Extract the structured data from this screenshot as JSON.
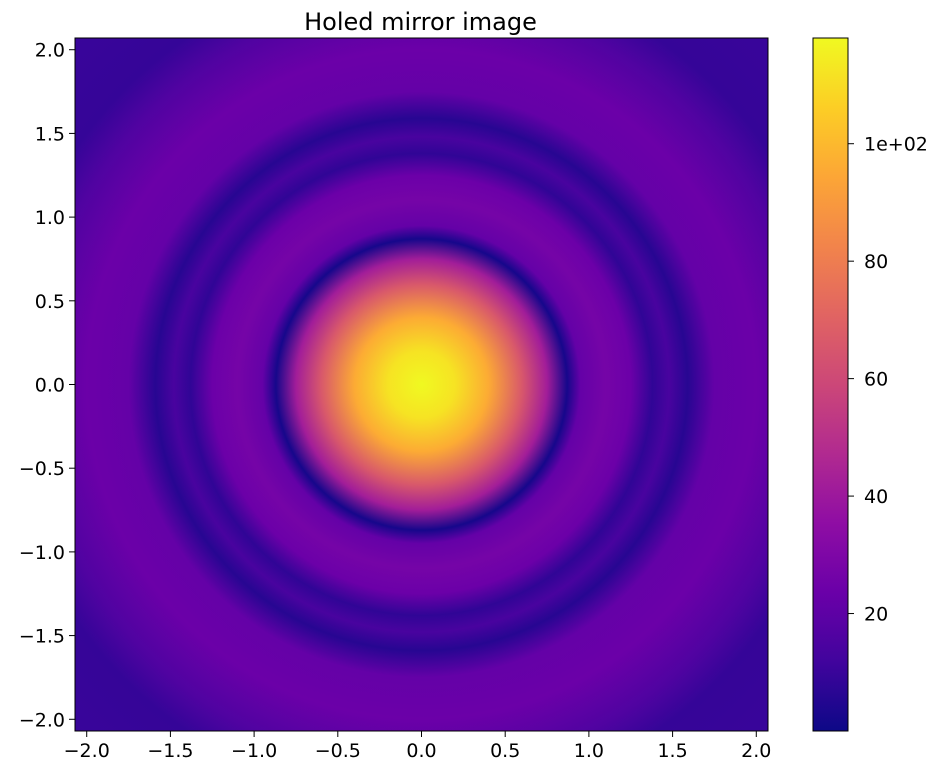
{
  "chart_data": {
    "type": "heatmap",
    "title": "Holed mirror image",
    "xlabel": "",
    "ylabel": "",
    "xlim": [
      -2.07,
      2.07
    ],
    "ylim": [
      -2.07,
      2.07
    ],
    "x_ticks": [
      -2.0,
      -1.5,
      -1.0,
      -0.5,
      0.0,
      0.5,
      1.0,
      1.5,
      2.0
    ],
    "x_tick_labels": [
      "−2.0",
      "−1.5",
      "−1.0",
      "−0.5",
      "0.0",
      "0.5",
      "1.0",
      "1.5",
      "2.0"
    ],
    "y_ticks": [
      2.0,
      1.5,
      1.0,
      0.5,
      0.0,
      -0.5,
      -1.0,
      -1.5,
      -2.0
    ],
    "y_tick_labels": [
      "2.0",
      "1.5",
      "1.0",
      "0.5",
      "0.0",
      "−0.5",
      "−1.0",
      "−1.5",
      "−2.0"
    ],
    "grid": false,
    "colormap": "plasma",
    "colorbar": {
      "vmin": 0,
      "vmax": 118,
      "ticks": [
        20,
        40,
        60,
        80,
        100
      ],
      "tick_labels": [
        "20",
        "40",
        "60",
        "80",
        "1e+02"
      ],
      "placement": "right"
    },
    "radial_profile": {
      "r": [
        0.0,
        0.2,
        0.4,
        0.6,
        0.75,
        0.87,
        0.95,
        1.1,
        1.25,
        1.38,
        1.48,
        1.59,
        1.75,
        2.0,
        2.3,
        2.5,
        2.93
      ],
      "value": [
        118,
        112,
        96,
        66,
        42,
        2,
        22,
        27,
        24,
        8,
        14,
        6,
        22,
        24,
        16,
        9,
        10
      ]
    }
  },
  "colors": {
    "plasma": [
      "#0d0887",
      "#41049d",
      "#6a00a8",
      "#8f0da4",
      "#b12a90",
      "#cc4778",
      "#e16462",
      "#f2844b",
      "#fca636",
      "#fcce25",
      "#f0f921"
    ]
  }
}
